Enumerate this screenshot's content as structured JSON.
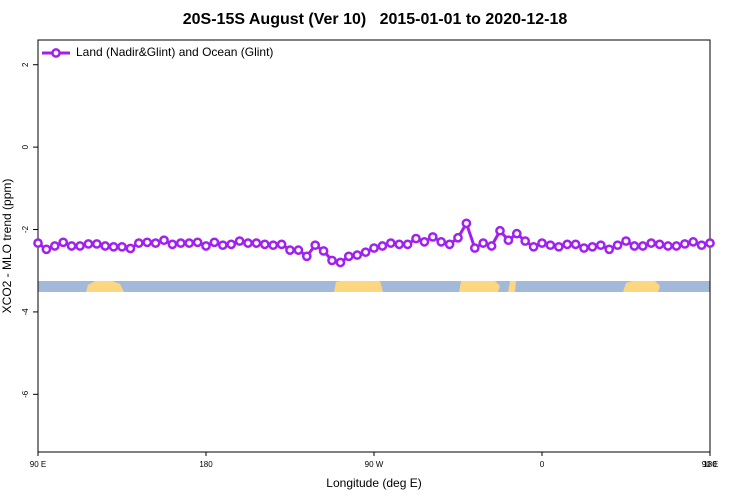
{
  "chart_data": {
    "type": "line",
    "title": "20S-15S August (Ver 10)   2015-01-01 to 2020-12-18",
    "x_label": "Longitude (deg E)",
    "y_label": "XCO2 - MLO trend (ppm)",
    "xlim": [
      90,
      450
    ],
    "xticks": [
      {
        "value": 90,
        "label": "90 E"
      },
      180,
      {
        "value": 270,
        "label": "90 W"
      },
      {
        "value": 360,
        "label": "0"
      },
      {
        "value": 450,
        "label": "90 E"
      },
      {
        "value": 540,
        "label": "180"
      }
    ],
    "ylim": [
      -7.4,
      2.6
    ],
    "yticks": [
      2,
      0,
      -2,
      -4,
      -6
    ],
    "legend_position": "top-left",
    "series": [
      {
        "name": "Land (Nadir&Glint) and Ocean (Glint)",
        "color": "#a020f0",
        "x": [
          90,
          94.5,
          99,
          103.5,
          108,
          112.5,
          117,
          121.5,
          126,
          130.5,
          135,
          139.5,
          144,
          148.5,
          153,
          157.5,
          162,
          166.5,
          171,
          175.5,
          180,
          184.5,
          189,
          193.5,
          198,
          202.5,
          207,
          211.5,
          216,
          220.5,
          225,
          229.5,
          234,
          238.5,
          243,
          247.5,
          252,
          256.5,
          261,
          265.5,
          270,
          274.5,
          279,
          283.5,
          288,
          292.5,
          297,
          301.5,
          306,
          310.5,
          315,
          319.5,
          324,
          328.5,
          333,
          337.5,
          342,
          346.5,
          351,
          355.5,
          360,
          364.5,
          369,
          373.5,
          378,
          382.5,
          387,
          391.5,
          396,
          400.5,
          405,
          409.5,
          414,
          418.5,
          423,
          427.5,
          432,
          436.5,
          441,
          445.5,
          450
        ],
        "values": [
          -2.33,
          -2.48,
          -2.4,
          -2.31,
          -2.4,
          -2.4,
          -2.35,
          -2.35,
          -2.4,
          -2.42,
          -2.42,
          -2.46,
          -2.33,
          -2.31,
          -2.33,
          -2.26,
          -2.36,
          -2.33,
          -2.33,
          -2.31,
          -2.4,
          -2.31,
          -2.38,
          -2.36,
          -2.28,
          -2.33,
          -2.33,
          -2.36,
          -2.38,
          -2.36,
          -2.5,
          -2.5,
          -2.65,
          -2.38,
          -2.52,
          -2.75,
          -2.8,
          -2.65,
          -2.62,
          -2.55,
          -2.45,
          -2.4,
          -2.33,
          -2.36,
          -2.36,
          -2.22,
          -2.3,
          -2.18,
          -2.3,
          -2.36,
          -2.2,
          -1.85,
          -2.45,
          -2.33,
          -2.4,
          -2.03,
          -2.26,
          -2.1,
          -2.28,
          -2.42,
          -2.33,
          -2.38,
          -2.42,
          -2.36,
          -2.36,
          -2.45,
          -2.42,
          -2.38,
          -2.48,
          -2.38,
          -2.28,
          -2.4,
          -2.4,
          -2.33,
          -2.36,
          -2.4,
          -2.4,
          -2.35,
          -2.3,
          -2.38,
          -2.33
        ]
      }
    ]
  }
}
